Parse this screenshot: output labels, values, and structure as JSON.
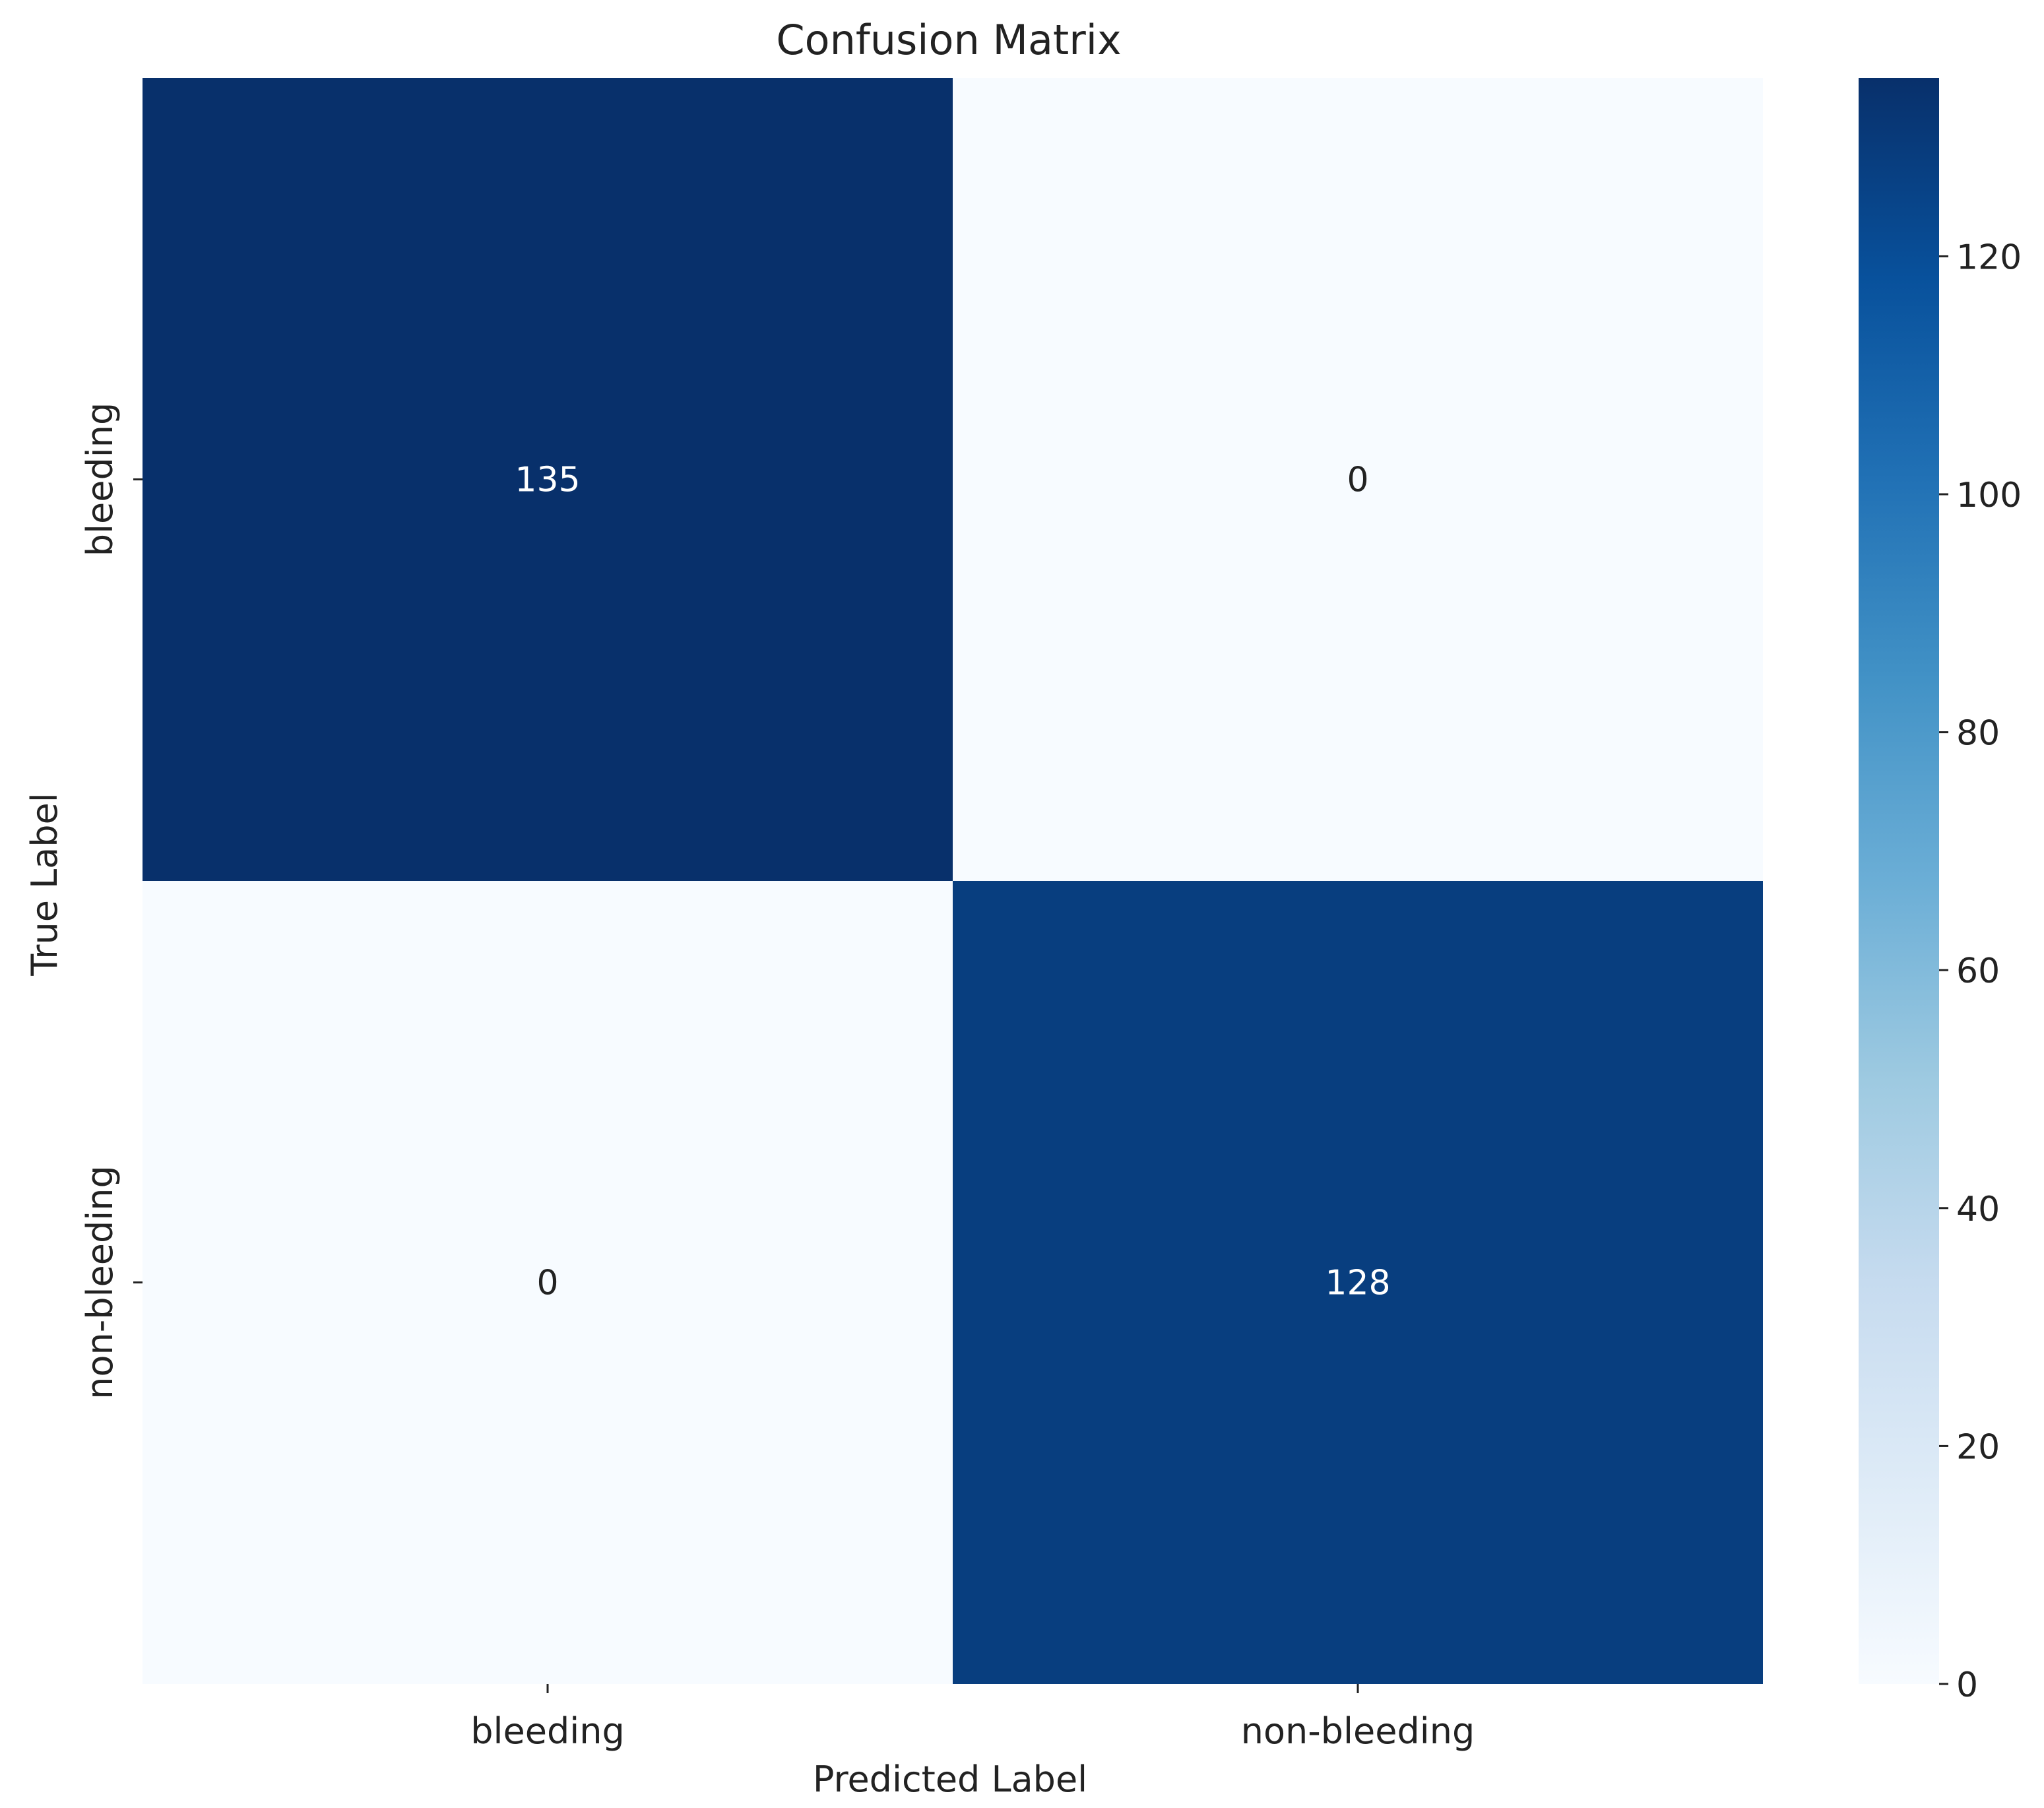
{
  "chart_data": {
    "type": "heatmap",
    "title": "Confusion Matrix",
    "xlabel": "Predicted Label",
    "ylabel": "True Label",
    "x_categories": [
      "bleeding",
      "non-bleeding"
    ],
    "y_categories": [
      "bleeding",
      "non-bleeding"
    ],
    "values": [
      [
        135,
        0
      ],
      [
        0,
        128
      ]
    ],
    "colorbar": {
      "range": [
        0,
        135
      ],
      "ticks": [
        0,
        20,
        40,
        60,
        80,
        100,
        120
      ],
      "colormap": "Blues",
      "color_low": "#f7fbff",
      "color_high": "#08306b"
    }
  }
}
